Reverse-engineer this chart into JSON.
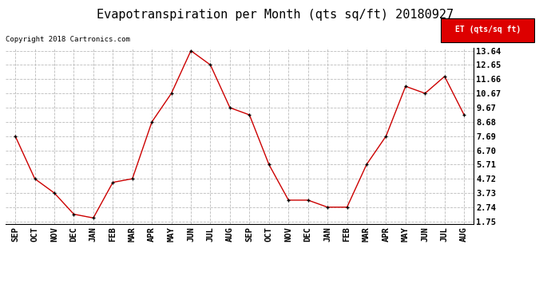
{
  "title": "Evapotranspiration per Month (qts sq/ft) 20180927",
  "copyright": "Copyright 2018 Cartronics.com",
  "legend_label": "ET (qts/sq ft)",
  "categories": [
    "SEP",
    "OCT",
    "NOV",
    "DEC",
    "JAN",
    "FEB",
    "MAR",
    "APR",
    "MAY",
    "JUN",
    "JUL",
    "AUG",
    "SEP",
    "OCT",
    "NOV",
    "DEC",
    "JAN",
    "FEB",
    "MAR",
    "APR",
    "MAY",
    "JUN",
    "JUL",
    "AUG"
  ],
  "values": [
    7.69,
    4.72,
    3.73,
    2.25,
    1.99,
    4.47,
    4.72,
    8.68,
    10.67,
    13.64,
    12.65,
    9.67,
    9.17,
    5.71,
    3.23,
    3.23,
    2.74,
    2.74,
    5.71,
    7.69,
    11.16,
    10.67,
    11.85,
    9.17
  ],
  "line_color": "#cc0000",
  "marker_color": "black",
  "background_color": "#ffffff",
  "grid_color": "#bbbbbb",
  "yticks": [
    1.75,
    2.74,
    3.73,
    4.72,
    5.71,
    6.7,
    7.69,
    8.68,
    9.67,
    10.67,
    11.66,
    12.65,
    13.64
  ],
  "ylim_low": 1.55,
  "ylim_high": 13.84,
  "title_fontsize": 11,
  "tick_fontsize": 7.5,
  "copyright_fontsize": 6.5,
  "legend_bg": "#dd0000",
  "legend_fg": "#ffffff",
  "legend_fontsize": 7
}
